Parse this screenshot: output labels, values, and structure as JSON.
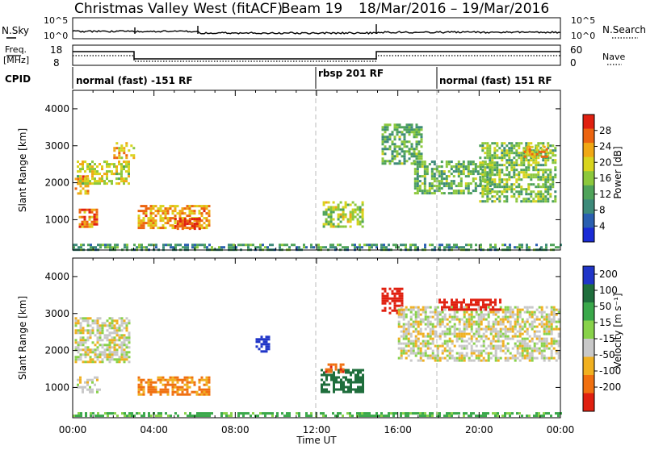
{
  "header": {
    "station": "Christmas Valley West (fitACF)",
    "beam": "Beam 19",
    "date_range": "18/Mar/2016 – 19/Mar/2016"
  },
  "panels": {
    "nsky_label": "N.Sky",
    "nsky_ticks": [
      "10^5",
      "10^0"
    ],
    "nsearch_label": "N.Search",
    "freq_label_1": "Freq.",
    "freq_label_2": "[MHz]",
    "freq_ticks": [
      "18",
      "8"
    ],
    "nave_ticks": [
      "60",
      "0"
    ],
    "nave_label": "Nave",
    "cpid_label": "CPID",
    "cpid_modes": [
      "normal (fast) -151 RF",
      "rbsp 201 RF",
      "normal (fast) 151 RF"
    ]
  },
  "chart_data": [
    {
      "type": "heatmap",
      "title": "",
      "xlabel": "Time UT",
      "ylabel": "Slant Range [km]",
      "quantity": "Power [dB]",
      "xlim": [
        "00:00",
        "24:00"
      ],
      "ylim": [
        180,
        4500
      ],
      "x_ticks": [
        "00:00",
        "04:00",
        "08:00",
        "12:00",
        "16:00",
        "20:00",
        "00:00"
      ],
      "y_ticks": [
        "1000",
        "2000",
        "3000",
        "4000"
      ],
      "colorbar": {
        "label": "Power [dB]",
        "ticks": [
          "4",
          "8",
          "12",
          "16",
          "20",
          "24",
          "28"
        ],
        "range": [
          0,
          30
        ],
        "colors": [
          "#1a2bd6",
          "#2a5fb0",
          "#3d8a7a",
          "#4fa35a",
          "#8cc83c",
          "#d8d41e",
          "#f0a814",
          "#ec6410",
          "#e02010"
        ]
      },
      "regions": [
        {
          "t": [
            0.1,
            0.7
          ],
          "r": [
            1700,
            2200
          ],
          "v": 22
        },
        {
          "t": [
            0.2,
            2.8
          ],
          "r": [
            2000,
            2600
          ],
          "v": 18
        },
        {
          "t": [
            0.3,
            1.2
          ],
          "r": [
            800,
            1300
          ],
          "v": 24
        },
        {
          "t": [
            2.0,
            3.0
          ],
          "r": [
            2700,
            3100
          ],
          "v": 20
        },
        {
          "t": [
            3.2,
            6.7
          ],
          "r": [
            800,
            1400
          ],
          "v": 22
        },
        {
          "t": [
            5.0,
            6.3
          ],
          "r": [
            750,
            1050
          ],
          "v": 28
        },
        {
          "t": [
            12.3,
            14.3
          ],
          "r": [
            800,
            1500
          ],
          "v": 16
        },
        {
          "t": [
            15.2,
            17.2
          ],
          "r": [
            2500,
            3600
          ],
          "v": 12
        },
        {
          "t": [
            16.8,
            20.5
          ],
          "r": [
            1700,
            2600
          ],
          "v": 12
        },
        {
          "t": [
            20.0,
            23.8
          ],
          "r": [
            1500,
            3100
          ],
          "v": 14
        },
        {
          "t": [
            22.2,
            23.3
          ],
          "r": [
            2700,
            3000
          ],
          "v": 22
        },
        {
          "t": [
            0.0,
            24.0
          ],
          "r": [
            200,
            350
          ],
          "v": 10
        }
      ]
    },
    {
      "type": "heatmap",
      "title": "",
      "xlabel": "Time UT",
      "ylabel": "Slant Range [km]",
      "quantity": "Velocity [m s^-1]",
      "xlim": [
        "00:00",
        "24:00"
      ],
      "ylim": [
        180,
        4500
      ],
      "x_ticks": [
        "00:00",
        "04:00",
        "08:00",
        "12:00",
        "16:00",
        "20:00",
        "00:00"
      ],
      "y_ticks": [
        "1000",
        "2000",
        "3000",
        "4000"
      ],
      "colorbar": {
        "label": "Velocity [m s⁻¹]",
        "ticks": [
          "200",
          "100",
          "50",
          "15",
          "-15",
          "-50",
          "-100",
          "-200"
        ],
        "range": [
          -250,
          250
        ],
        "colors": [
          "#2035c8",
          "#1f6e3c",
          "#3aa84a",
          "#88d24a",
          "#c8c8c8",
          "#f0b020",
          "#f07010",
          "#e02010"
        ]
      },
      "regions": [
        {
          "t": [
            0.1,
            2.8
          ],
          "r": [
            1700,
            2900
          ],
          "v": 0
        },
        {
          "t": [
            0.2,
            1.3
          ],
          "r": [
            900,
            1300
          ],
          "v": 0
        },
        {
          "t": [
            3.2,
            6.7
          ],
          "r": [
            800,
            1300
          ],
          "v": -40
        },
        {
          "t": [
            9.0,
            9.6
          ],
          "r": [
            2000,
            2400
          ],
          "v": 200
        },
        {
          "t": [
            12.2,
            14.3
          ],
          "r": [
            900,
            1500
          ],
          "v": 120
        },
        {
          "t": [
            12.3,
            13.3
          ],
          "r": [
            1400,
            1650
          ],
          "v": -60
        },
        {
          "t": [
            15.2,
            16.2
          ],
          "r": [
            3000,
            3700
          ],
          "v": -150
        },
        {
          "t": [
            16.0,
            23.9
          ],
          "r": [
            1700,
            3200
          ],
          "v": 0
        },
        {
          "t": [
            18.0,
            21.0
          ],
          "r": [
            3100,
            3400
          ],
          "v": -200
        },
        {
          "t": [
            0.0,
            24.0
          ],
          "r": [
            200,
            330
          ],
          "v": 40
        }
      ]
    }
  ]
}
